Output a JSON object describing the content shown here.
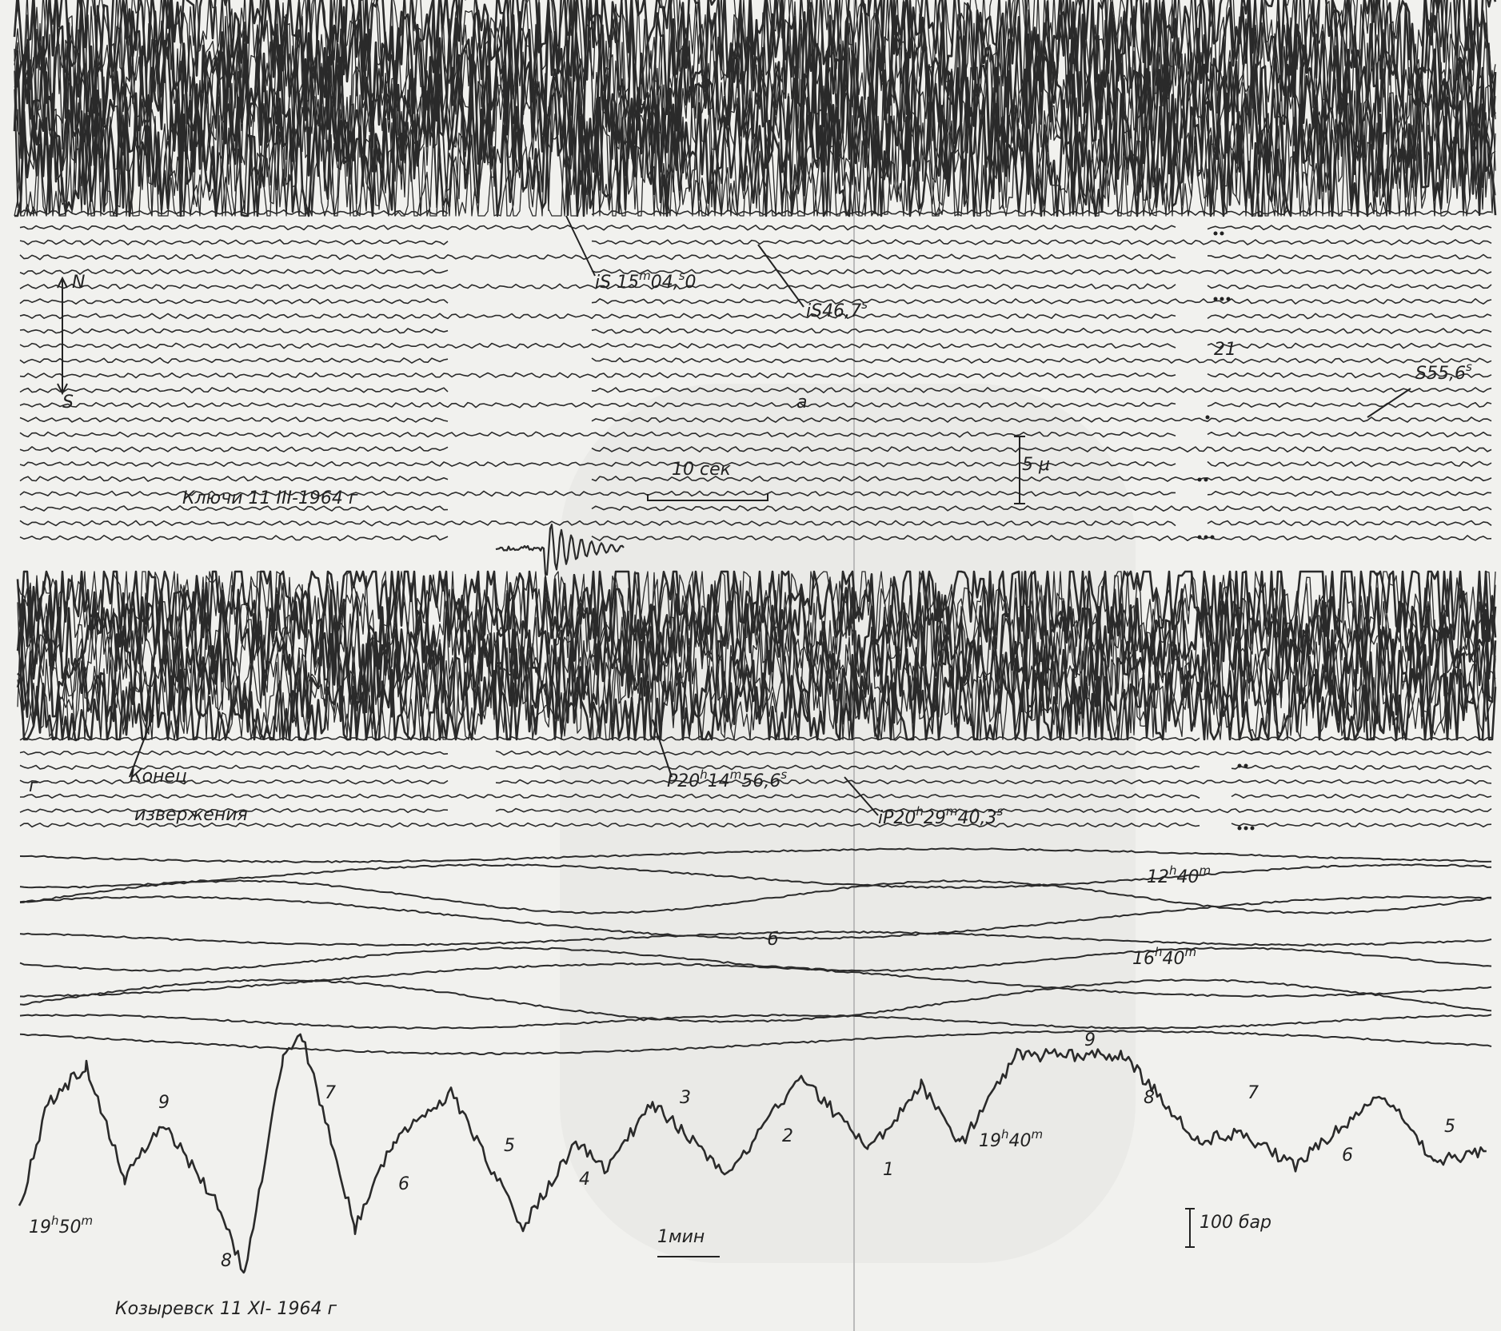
{
  "labels": [
    {
      "parts": [
        "iS 15",
        "m",
        "04,",
        "s",
        "0"
      ]
    },
    {
      "parts": [
        "iS46,7",
        "s"
      ]
    },
    {
      "parts": [
        "N"
      ]
    },
    {
      "parts": [
        "S"
      ]
    },
    {
      "parts": [
        "21"
      ]
    },
    {
      "parts": [
        "S55,6",
        "s"
      ]
    },
    {
      "parts": [
        "a"
      ]
    },
    {
      "parts": [
        "10 сек"
      ]
    },
    {
      "parts": [
        "5 μ"
      ]
    },
    {
      "parts": [
        "Ключи  11 III-1964 г"
      ]
    },
    {
      "parts": [
        "г"
      ]
    },
    {
      "parts": [
        "Конец"
      ]
    },
    {
      "parts": [
        "извержения"
      ]
    },
    {
      "parts": [
        "P20",
        "h",
        "14",
        "m",
        "56,6",
        "s"
      ]
    },
    {
      "parts": [
        "iP20",
        "h",
        "29",
        "m",
        "40,3",
        "s"
      ]
    },
    {
      "parts": [
        "12",
        "h",
        "40",
        "m"
      ]
    },
    {
      "parts": [
        "б"
      ]
    },
    {
      "parts": [
        "16",
        "h",
        "40",
        "m"
      ]
    },
    {
      "parts": [
        "9"
      ]
    },
    {
      "parts": [
        "19",
        "h",
        "50",
        "m"
      ]
    },
    {
      "parts": [
        "9"
      ]
    },
    {
      "parts": [
        "7"
      ]
    },
    {
      "parts": [
        "6"
      ]
    },
    {
      "parts": [
        "5"
      ]
    },
    {
      "parts": [
        "4"
      ]
    },
    {
      "parts": [
        "3"
      ]
    },
    {
      "parts": [
        "2"
      ]
    },
    {
      "parts": [
        "1"
      ]
    },
    {
      "parts": [
        "19",
        "h",
        "40",
        "m"
      ]
    },
    {
      "parts": [
        "8"
      ]
    },
    {
      "parts": [
        "7"
      ]
    },
    {
      "parts": [
        "6"
      ]
    },
    {
      "parts": [
        "5"
      ]
    },
    {
      "parts": [
        "8"
      ]
    },
    {
      "parts": [
        "1мин"
      ]
    },
    {
      "parts": [
        "100 бар"
      ]
    },
    {
      "parts": [
        "Козыревск    11 XI- 1964 г"
      ]
    }
  ]
}
